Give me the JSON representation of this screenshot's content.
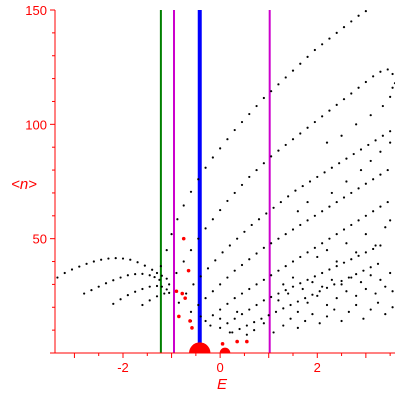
{
  "chart_data": {
    "type": "scatter",
    "xlabel": "E",
    "ylabel": "<n>",
    "xlim": [
      -3.4,
      3.6
    ],
    "ylim": [
      0,
      150
    ],
    "x_ticks": [
      {
        "value": -2,
        "label": "-2"
      },
      {
        "value": 0,
        "label": "0"
      },
      {
        "value": 2,
        "label": "2"
      }
    ],
    "y_ticks": [
      {
        "value": 50,
        "label": "50"
      },
      {
        "value": 100,
        "label": "100"
      },
      {
        "value": 150,
        "label": "150"
      }
    ],
    "grid": false,
    "vertical_lines": [
      {
        "x": -1.22,
        "color": "#008000"
      },
      {
        "x": -0.95,
        "color": "#cc00cc"
      },
      {
        "x": -0.42,
        "color": "#0000ff"
      },
      {
        "x": 1.02,
        "color": "#cc00cc"
      }
    ],
    "series": [
      {
        "color": "#000000",
        "points": [
          [
            -3.35,
            33
          ],
          [
            -3.2,
            35
          ],
          [
            -3.05,
            36.5
          ],
          [
            -2.9,
            37.8
          ],
          [
            -2.75,
            39
          ],
          [
            -2.6,
            40
          ],
          [
            -2.45,
            40.8
          ],
          [
            -2.3,
            41.3
          ],
          [
            -2.15,
            41.5
          ],
          [
            -2.0,
            41.3
          ],
          [
            -1.85,
            40.8
          ],
          [
            -1.7,
            39.7
          ],
          [
            -1.55,
            38.2
          ],
          [
            -1.4,
            36.4
          ],
          [
            -1.3,
            35
          ],
          [
            -1.2,
            33.8
          ],
          [
            -1.1,
            32.5
          ],
          [
            -2.8,
            26
          ],
          [
            -2.65,
            27.5
          ],
          [
            -2.5,
            29
          ],
          [
            -2.35,
            30.5
          ],
          [
            -2.2,
            31.8
          ],
          [
            -2.05,
            33
          ],
          [
            -1.9,
            34
          ],
          [
            -1.75,
            34.5
          ],
          [
            -1.6,
            34.6
          ],
          [
            -1.45,
            34
          ],
          [
            -1.35,
            33.2
          ],
          [
            -1.25,
            32
          ],
          [
            -2.2,
            21.5
          ],
          [
            -2.05,
            23.5
          ],
          [
            -1.9,
            25.3
          ],
          [
            -1.75,
            26.8
          ],
          [
            -1.6,
            28
          ],
          [
            -1.45,
            29
          ],
          [
            -1.3,
            29.3
          ],
          [
            -1.2,
            29
          ],
          [
            -1.1,
            27.8
          ],
          [
            -1.6,
            21
          ],
          [
            -1.45,
            23
          ],
          [
            -1.3,
            24.8
          ],
          [
            -1.15,
            26
          ],
          [
            -1.05,
            26.3
          ],
          [
            -1.22,
            38
          ],
          [
            -1.1,
            45
          ],
          [
            -1.0,
            52
          ],
          [
            -0.88,
            58.5
          ],
          [
            -0.75,
            64.5
          ],
          [
            -0.6,
            70.5
          ],
          [
            -0.45,
            76
          ],
          [
            -0.3,
            81
          ],
          [
            -0.15,
            85.5
          ],
          [
            0.0,
            89.5
          ],
          [
            0.15,
            93.5
          ],
          [
            0.3,
            97.5
          ],
          [
            0.45,
            101
          ],
          [
            0.6,
            104.5
          ],
          [
            0.75,
            108
          ],
          [
            0.9,
            111.5
          ],
          [
            1.05,
            114.5
          ],
          [
            1.2,
            117.5
          ],
          [
            1.35,
            120.5
          ],
          [
            1.5,
            123.5
          ],
          [
            1.65,
            126.5
          ],
          [
            1.8,
            129.5
          ],
          [
            1.95,
            132.5
          ],
          [
            2.1,
            135
          ],
          [
            2.25,
            137.5
          ],
          [
            2.4,
            140
          ],
          [
            2.55,
            142.5
          ],
          [
            2.7,
            145
          ],
          [
            2.85,
            147.5
          ],
          [
            3.0,
            149.5
          ],
          [
            3.15,
            151.5
          ],
          [
            -1.05,
            30
          ],
          [
            -0.9,
            35
          ],
          [
            -0.75,
            40
          ],
          [
            -0.6,
            45
          ],
          [
            -0.45,
            50
          ],
          [
            -0.3,
            54.5
          ],
          [
            -0.15,
            58.5
          ],
          [
            0.0,
            62.5
          ],
          [
            0.15,
            66.5
          ],
          [
            0.3,
            70
          ],
          [
            0.45,
            73.5
          ],
          [
            0.6,
            77
          ],
          [
            0.75,
            80
          ],
          [
            0.9,
            83
          ],
          [
            1.05,
            86
          ],
          [
            1.2,
            88.5
          ],
          [
            1.35,
            91
          ],
          [
            1.5,
            93.5
          ],
          [
            1.65,
            96
          ],
          [
            1.8,
            98.5
          ],
          [
            1.95,
            101
          ],
          [
            2.1,
            103.5
          ],
          [
            2.25,
            106
          ],
          [
            2.4,
            108.5
          ],
          [
            2.55,
            111
          ],
          [
            2.7,
            113.5
          ],
          [
            2.85,
            116
          ],
          [
            3.0,
            118.5
          ],
          [
            3.15,
            121
          ],
          [
            3.3,
            123
          ],
          [
            3.45,
            124
          ],
          [
            3.55,
            122
          ],
          [
            3.6,
            118
          ],
          [
            -0.85,
            22
          ],
          [
            -0.7,
            26
          ],
          [
            -0.55,
            30
          ],
          [
            -0.4,
            33.5
          ],
          [
            -0.25,
            37
          ],
          [
            -0.1,
            40.5
          ],
          [
            0.05,
            44
          ],
          [
            0.2,
            47
          ],
          [
            0.35,
            50
          ],
          [
            0.5,
            53
          ],
          [
            0.65,
            56
          ],
          [
            0.8,
            58.5
          ],
          [
            0.95,
            61
          ],
          [
            1.1,
            63.5
          ],
          [
            1.25,
            66
          ],
          [
            1.4,
            68.5
          ],
          [
            1.55,
            71
          ],
          [
            1.7,
            73
          ],
          [
            1.85,
            75
          ],
          [
            2.0,
            77
          ],
          [
            2.15,
            79
          ],
          [
            2.3,
            81
          ],
          [
            2.45,
            83
          ],
          [
            2.6,
            85
          ],
          [
            2.75,
            87
          ],
          [
            2.9,
            89
          ],
          [
            3.05,
            91
          ],
          [
            3.2,
            93
          ],
          [
            3.35,
            95
          ],
          [
            3.5,
            97
          ],
          [
            -0.6,
            18
          ],
          [
            -0.45,
            21
          ],
          [
            -0.3,
            24
          ],
          [
            -0.15,
            27
          ],
          [
            0.0,
            30
          ],
          [
            0.15,
            33
          ],
          [
            0.3,
            36
          ],
          [
            0.45,
            38.5
          ],
          [
            0.6,
            41
          ],
          [
            0.75,
            43.5
          ],
          [
            0.9,
            46
          ],
          [
            1.05,
            48
          ],
          [
            1.2,
            50
          ],
          [
            1.35,
            52
          ],
          [
            1.5,
            54
          ],
          [
            1.65,
            56
          ],
          [
            1.8,
            58
          ],
          [
            1.95,
            60
          ],
          [
            2.1,
            62
          ],
          [
            2.25,
            64
          ],
          [
            2.4,
            66
          ],
          [
            2.55,
            68
          ],
          [
            2.7,
            70
          ],
          [
            2.85,
            72
          ],
          [
            3.0,
            74
          ],
          [
            3.15,
            76
          ],
          [
            3.3,
            78
          ],
          [
            3.45,
            80
          ],
          [
            -0.3,
            14
          ],
          [
            -0.15,
            16.5
          ],
          [
            0.0,
            19
          ],
          [
            0.15,
            21.5
          ],
          [
            0.3,
            24
          ],
          [
            0.45,
            26
          ],
          [
            0.6,
            28
          ],
          [
            0.75,
            30
          ],
          [
            0.9,
            32
          ],
          [
            1.05,
            34
          ],
          [
            1.2,
            36
          ],
          [
            1.35,
            38
          ],
          [
            1.5,
            40
          ],
          [
            1.65,
            42
          ],
          [
            1.8,
            44
          ],
          [
            1.95,
            46
          ],
          [
            2.1,
            48
          ],
          [
            2.25,
            50
          ],
          [
            2.4,
            52
          ],
          [
            2.55,
            54
          ],
          [
            2.7,
            56
          ],
          [
            2.85,
            58
          ],
          [
            3.0,
            60
          ],
          [
            3.15,
            62
          ],
          [
            3.3,
            64
          ],
          [
            3.45,
            66
          ],
          [
            0.0,
            11
          ],
          [
            0.15,
            13
          ],
          [
            0.3,
            15
          ],
          [
            0.45,
            17
          ],
          [
            0.6,
            19
          ],
          [
            0.75,
            21
          ],
          [
            0.9,
            23
          ],
          [
            1.05,
            24.5
          ],
          [
            1.2,
            26
          ],
          [
            1.35,
            27.5
          ],
          [
            1.5,
            29
          ],
          [
            1.65,
            30.5
          ],
          [
            1.8,
            32
          ],
          [
            1.95,
            33.5
          ],
          [
            2.1,
            35
          ],
          [
            2.25,
            36.5
          ],
          [
            2.4,
            38
          ],
          [
            2.55,
            39.5
          ],
          [
            2.7,
            41
          ],
          [
            2.85,
            42.5
          ],
          [
            3.0,
            44
          ],
          [
            3.15,
            45.5
          ],
          [
            3.3,
            47
          ],
          [
            0.25,
            9
          ],
          [
            0.4,
            10.5
          ],
          [
            0.55,
            12
          ],
          [
            0.7,
            13.5
          ],
          [
            0.85,
            15
          ],
          [
            1.0,
            16.5
          ],
          [
            1.15,
            18
          ],
          [
            1.3,
            19.5
          ],
          [
            1.45,
            21
          ],
          [
            1.6,
            22.5
          ],
          [
            1.75,
            24
          ],
          [
            1.9,
            25.5
          ],
          [
            2.05,
            27
          ],
          [
            2.2,
            28.5
          ],
          [
            2.35,
            30
          ],
          [
            2.5,
            31.5
          ],
          [
            2.65,
            33
          ],
          [
            2.8,
            34.5
          ],
          [
            2.95,
            36
          ],
          [
            3.1,
            37.5
          ],
          [
            3.25,
            39
          ],
          [
            -0.6,
            14
          ],
          [
            -0.4,
            16
          ],
          [
            -0.2,
            12
          ],
          [
            0.0,
            15
          ],
          [
            0.2,
            9
          ],
          [
            0.35,
            18
          ],
          [
            0.55,
            8
          ],
          [
            0.7,
            10
          ],
          [
            0.9,
            13
          ],
          [
            1.1,
            9
          ],
          [
            1.3,
            12
          ],
          [
            1.45,
            15
          ],
          [
            1.6,
            11
          ],
          [
            1.75,
            14
          ],
          [
            1.9,
            17
          ],
          [
            2.05,
            13
          ],
          [
            2.2,
            16
          ],
          [
            2.35,
            19
          ],
          [
            2.5,
            14
          ],
          [
            2.65,
            18
          ],
          [
            2.8,
            21
          ],
          [
            2.95,
            15
          ],
          [
            3.1,
            19
          ],
          [
            3.25,
            22
          ],
          [
            3.4,
            17
          ],
          [
            3.55,
            20
          ],
          [
            1.2,
            23
          ],
          [
            1.4,
            26
          ],
          [
            1.6,
            18
          ],
          [
            1.8,
            22
          ],
          [
            2.0,
            25
          ],
          [
            2.2,
            21
          ],
          [
            2.4,
            24
          ],
          [
            2.6,
            27
          ],
          [
            2.8,
            25
          ],
          [
            3.0,
            28
          ],
          [
            3.2,
            26
          ],
          [
            3.4,
            29
          ],
          [
            3.55,
            27
          ],
          [
            1.3,
            30
          ],
          [
            1.5,
            33
          ],
          [
            1.7,
            28
          ],
          [
            1.9,
            31
          ],
          [
            2.1,
            29
          ],
          [
            2.3,
            32
          ],
          [
            2.5,
            30
          ],
          [
            2.7,
            33
          ],
          [
            2.9,
            31
          ],
          [
            3.1,
            34
          ],
          [
            3.3,
            32
          ],
          [
            3.5,
            35
          ],
          [
            2.0,
            42
          ],
          [
            2.2,
            45
          ],
          [
            2.4,
            40
          ],
          [
            2.6,
            48
          ],
          [
            2.8,
            44
          ],
          [
            3.0,
            52
          ],
          [
            3.2,
            47
          ],
          [
            3.4,
            55
          ],
          [
            3.5,
            58
          ],
          [
            1.6,
            62
          ],
          [
            1.8,
            66
          ],
          [
            2.3,
            70
          ],
          [
            2.6,
            75
          ],
          [
            2.9,
            80
          ],
          [
            3.1,
            84
          ],
          [
            3.3,
            88
          ],
          [
            3.5,
            92
          ],
          [
            2.2,
            92
          ],
          [
            2.5,
            95
          ],
          [
            2.8,
            100
          ],
          [
            3.1,
            104
          ],
          [
            3.35,
            108
          ],
          [
            3.5,
            112
          ],
          [
            3.55,
            116
          ]
        ]
      },
      {
        "color": "#ff0000",
        "points": [
          [
            -0.75,
            50
          ],
          [
            -0.65,
            36
          ],
          [
            -0.9,
            27
          ],
          [
            -0.78,
            26
          ],
          [
            -0.72,
            24
          ],
          [
            -0.85,
            16
          ],
          [
            -0.62,
            14
          ],
          [
            -0.58,
            11
          ],
          [
            0.05,
            4
          ],
          [
            0.35,
            5
          ],
          [
            0.55,
            5
          ]
        ]
      }
    ],
    "blobs": [
      {
        "x": -0.42,
        "y": 0,
        "r": 2.2,
        "color": "#ff0000"
      },
      {
        "x": 0.1,
        "y": 0,
        "r": 1.1,
        "color": "#ff0000"
      }
    ]
  }
}
